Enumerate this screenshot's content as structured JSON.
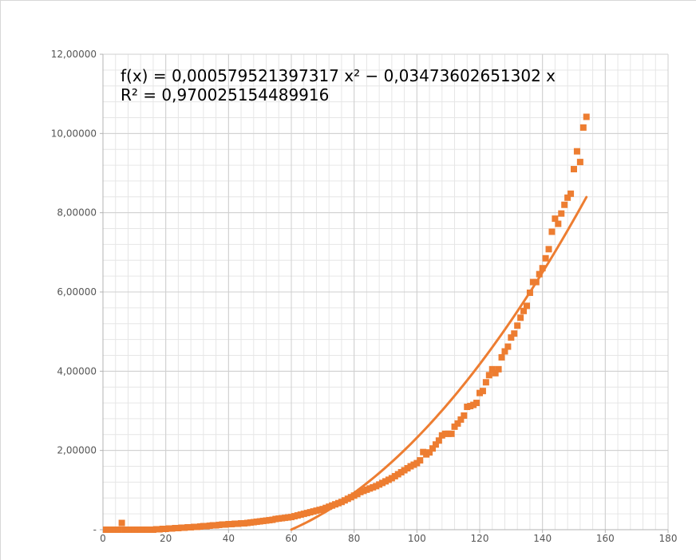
{
  "chart_data": {
    "type": "scatter",
    "title": "",
    "xlabel": "",
    "ylabel": "",
    "xlim": [
      0,
      180
    ],
    "ylim": [
      0,
      12
    ],
    "x_ticks": [
      0,
      20,
      40,
      60,
      80,
      100,
      120,
      140,
      160,
      180
    ],
    "y_ticks": [
      0,
      2,
      4,
      6,
      8,
      10,
      12
    ],
    "x_tick_labels": [
      "0",
      "20",
      "40",
      "60",
      "80",
      "100",
      "120",
      "140",
      "160",
      "180"
    ],
    "y_tick_labels": [
      "-",
      "2,00000",
      "4,00000",
      "6,00000",
      "8,00000",
      "10,00000",
      "12,00000"
    ],
    "grid": true,
    "minor_grid": true,
    "series_color": "#ed7d31",
    "trendline": {
      "type": "polynomial",
      "a": 0.000579521397317,
      "b": -0.0347360265113,
      "c": 0,
      "x_range": [
        60,
        154
      ],
      "equation_text": "f(x) = 0,000579521397317 x² − 0,03473602651302 x",
      "r2_text": "R² = 0,970025154489916"
    },
    "points": [
      [
        1,
        0.0
      ],
      [
        2,
        0.0
      ],
      [
        3,
        0.0
      ],
      [
        4,
        0.0
      ],
      [
        5,
        0.0
      ],
      [
        6,
        0.17
      ],
      [
        7,
        0.0
      ],
      [
        8,
        0.0
      ],
      [
        9,
        0.0
      ],
      [
        10,
        0.0
      ],
      [
        11,
        0.0
      ],
      [
        12,
        0.0
      ],
      [
        13,
        0.0
      ],
      [
        14,
        0.0
      ],
      [
        15,
        0.0
      ],
      [
        16,
        0.0
      ],
      [
        17,
        0.01
      ],
      [
        18,
        0.01
      ],
      [
        19,
        0.02
      ],
      [
        20,
        0.02
      ],
      [
        21,
        0.03
      ],
      [
        22,
        0.03
      ],
      [
        23,
        0.04
      ],
      [
        24,
        0.04
      ],
      [
        25,
        0.05
      ],
      [
        26,
        0.05
      ],
      [
        27,
        0.06
      ],
      [
        28,
        0.06
      ],
      [
        29,
        0.07
      ],
      [
        30,
        0.07
      ],
      [
        31,
        0.08
      ],
      [
        32,
        0.09
      ],
      [
        33,
        0.09
      ],
      [
        34,
        0.1
      ],
      [
        35,
        0.11
      ],
      [
        36,
        0.11
      ],
      [
        37,
        0.12
      ],
      [
        38,
        0.13
      ],
      [
        39,
        0.13
      ],
      [
        40,
        0.14
      ],
      [
        41,
        0.14
      ],
      [
        42,
        0.15
      ],
      [
        43,
        0.15
      ],
      [
        44,
        0.16
      ],
      [
        45,
        0.16
      ],
      [
        46,
        0.17
      ],
      [
        47,
        0.18
      ],
      [
        48,
        0.19
      ],
      [
        49,
        0.2
      ],
      [
        50,
        0.21
      ],
      [
        51,
        0.22
      ],
      [
        52,
        0.23
      ],
      [
        53,
        0.24
      ],
      [
        54,
        0.25
      ],
      [
        55,
        0.27
      ],
      [
        56,
        0.28
      ],
      [
        57,
        0.29
      ],
      [
        58,
        0.3
      ],
      [
        59,
        0.31
      ],
      [
        60,
        0.32
      ],
      [
        61,
        0.34
      ],
      [
        62,
        0.36
      ],
      [
        63,
        0.38
      ],
      [
        64,
        0.4
      ],
      [
        65,
        0.42
      ],
      [
        66,
        0.44
      ],
      [
        67,
        0.46
      ],
      [
        68,
        0.48
      ],
      [
        69,
        0.5
      ],
      [
        70,
        0.52
      ],
      [
        71,
        0.55
      ],
      [
        72,
        0.58
      ],
      [
        73,
        0.61
      ],
      [
        74,
        0.64
      ],
      [
        75,
        0.67
      ],
      [
        76,
        0.7
      ],
      [
        77,
        0.74
      ],
      [
        78,
        0.78
      ],
      [
        79,
        0.82
      ],
      [
        80,
        0.86
      ],
      [
        81,
        0.9
      ],
      [
        82,
        0.95
      ],
      [
        83,
        0.98
      ],
      [
        84,
        1.01
      ],
      [
        85,
        1.04
      ],
      [
        86,
        1.07
      ],
      [
        87,
        1.1
      ],
      [
        88,
        1.14
      ],
      [
        89,
        1.18
      ],
      [
        90,
        1.22
      ],
      [
        91,
        1.26
      ],
      [
        92,
        1.3
      ],
      [
        93,
        1.35
      ],
      [
        94,
        1.4
      ],
      [
        95,
        1.45
      ],
      [
        96,
        1.5
      ],
      [
        97,
        1.55
      ],
      [
        98,
        1.6
      ],
      [
        99,
        1.64
      ],
      [
        100,
        1.68
      ],
      [
        101,
        1.75
      ],
      [
        102,
        1.96
      ],
      [
        103,
        1.9
      ],
      [
        104,
        1.95
      ],
      [
        105,
        2.05
      ],
      [
        106,
        2.15
      ],
      [
        107,
        2.25
      ],
      [
        108,
        2.38
      ],
      [
        109,
        2.42
      ],
      [
        110,
        2.42
      ],
      [
        111,
        2.42
      ],
      [
        112,
        2.6
      ],
      [
        113,
        2.68
      ],
      [
        114,
        2.78
      ],
      [
        115,
        2.88
      ],
      [
        116,
        3.1
      ],
      [
        117,
        3.12
      ],
      [
        118,
        3.15
      ],
      [
        119,
        3.2
      ],
      [
        120,
        3.45
      ],
      [
        121,
        3.5
      ],
      [
        122,
        3.72
      ],
      [
        123,
        3.9
      ],
      [
        124,
        4.05
      ],
      [
        125,
        3.95
      ],
      [
        126,
        4.05
      ],
      [
        127,
        4.35
      ],
      [
        128,
        4.5
      ],
      [
        129,
        4.62
      ],
      [
        130,
        4.85
      ],
      [
        131,
        4.95
      ],
      [
        132,
        5.15
      ],
      [
        133,
        5.35
      ],
      [
        134,
        5.52
      ],
      [
        135,
        5.65
      ],
      [
        136,
        5.98
      ],
      [
        137,
        6.25
      ],
      [
        138,
        6.25
      ],
      [
        139,
        6.45
      ],
      [
        140,
        6.6
      ],
      [
        141,
        6.85
      ],
      [
        142,
        7.08
      ],
      [
        143,
        7.52
      ],
      [
        144,
        7.85
      ],
      [
        145,
        7.72
      ],
      [
        146,
        7.98
      ],
      [
        147,
        8.2
      ],
      [
        148,
        8.38
      ],
      [
        149,
        8.48
      ],
      [
        150,
        9.1
      ],
      [
        151,
        9.55
      ],
      [
        152,
        9.28
      ],
      [
        153,
        10.15
      ],
      [
        154,
        10.42
      ]
    ]
  }
}
